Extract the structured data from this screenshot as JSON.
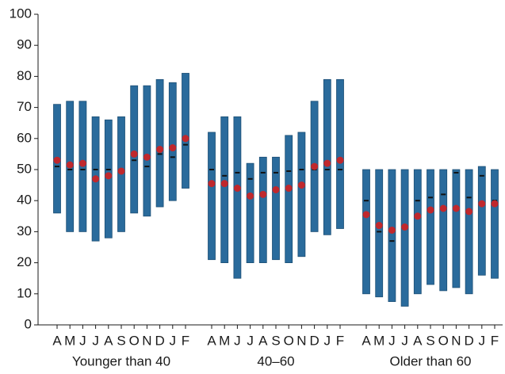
{
  "chart_data": {
    "type": "range",
    "ylim": [
      0,
      100
    ],
    "yticks": [
      0,
      10,
      20,
      30,
      40,
      50,
      60,
      70,
      80,
      90,
      100
    ],
    "bar_color": "#2a6b9c",
    "median_color": "#111111",
    "mean_color": "#c0282d",
    "groups": [
      {
        "name": "Younger than 40",
        "categories": [
          "A",
          "M",
          "J",
          "J",
          "A",
          "S",
          "O",
          "N",
          "D",
          "J",
          "F"
        ],
        "low": [
          36,
          30,
          30,
          27,
          28,
          30,
          36,
          35,
          38,
          40,
          44
        ],
        "high": [
          71,
          72,
          72,
          67,
          66,
          67,
          77,
          77,
          79,
          78,
          81
        ],
        "median": [
          51,
          50,
          50,
          50,
          50,
          50,
          53,
          51,
          55,
          54,
          58
        ],
        "mean": [
          53,
          51.5,
          52,
          47,
          48,
          49.5,
          55,
          54,
          56.5,
          57,
          60
        ]
      },
      {
        "name": "40–60",
        "categories": [
          "A",
          "M",
          "J",
          "J",
          "A",
          "S",
          "O",
          "N",
          "D",
          "J",
          "F"
        ],
        "low": [
          21,
          20,
          15,
          20,
          20,
          21,
          20,
          22,
          30,
          29,
          31
        ],
        "high": [
          62,
          67,
          67,
          52,
          54,
          54,
          61,
          62,
          72,
          79,
          79
        ],
        "median": [
          50,
          48,
          49,
          47,
          49,
          49,
          49.5,
          50,
          50,
          50,
          50
        ],
        "mean": [
          45.5,
          45.5,
          44,
          41.5,
          42,
          43.5,
          44,
          45,
          51,
          52,
          53
        ]
      },
      {
        "name": "Older than 60",
        "categories": [
          "A",
          "M",
          "J",
          "J",
          "A",
          "S",
          "O",
          "N",
          "D",
          "J",
          "F"
        ],
        "low": [
          10,
          9,
          7.5,
          6,
          10,
          13,
          11,
          12,
          10,
          16,
          15
        ],
        "high": [
          50,
          50,
          50,
          50,
          50,
          50,
          50,
          50,
          50,
          51,
          50
        ],
        "median": [
          40,
          30,
          27,
          31,
          40,
          41,
          42,
          49,
          41,
          48,
          40
        ],
        "mean": [
          35.5,
          32,
          30.5,
          31.5,
          35,
          37,
          37.5,
          37.5,
          36.5,
          39,
          39
        ]
      }
    ]
  }
}
